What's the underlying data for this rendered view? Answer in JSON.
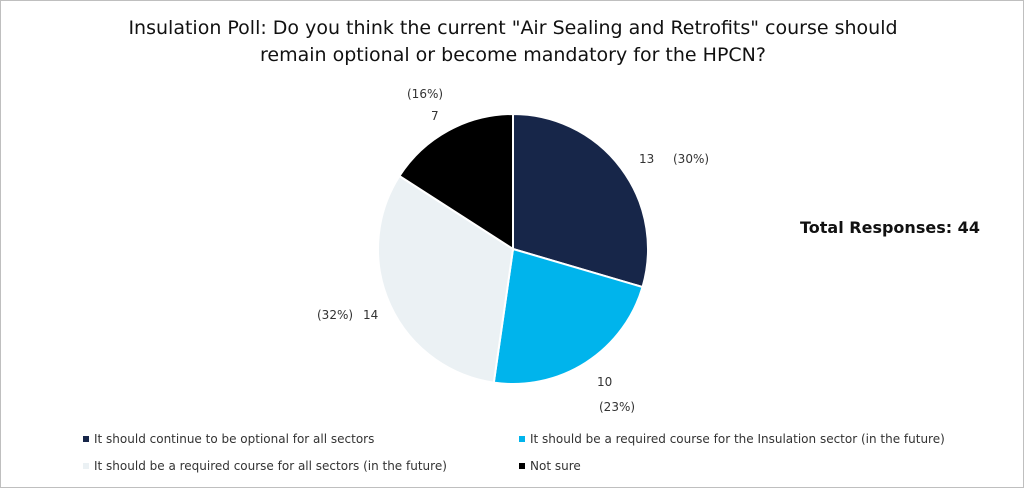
{
  "chart_data": {
    "type": "pie",
    "title": "Insulation Poll: Do you think the current \"Air Sealing and Retrofits\" course should remain optional or become mandatory for the HPCN?",
    "annotation": "Total Responses: 44",
    "legend_position": "bottom",
    "slices": [
      {
        "label": "It should continue to be optional for all sectors",
        "value": 13,
        "percent": "(30%)",
        "color": "#172649"
      },
      {
        "label": "It should be a required course for the Insulation sector (in the future)",
        "value": 10,
        "percent": "(23%)",
        "color": "#00b4ec"
      },
      {
        "label": "It should be a required course for all sectors (in the future)",
        "value": 14,
        "percent": "(32%)",
        "color": "#ebf1f4"
      },
      {
        "label": "Not sure",
        "value": 7,
        "percent": "(16%)",
        "color": "#000000"
      }
    ]
  }
}
